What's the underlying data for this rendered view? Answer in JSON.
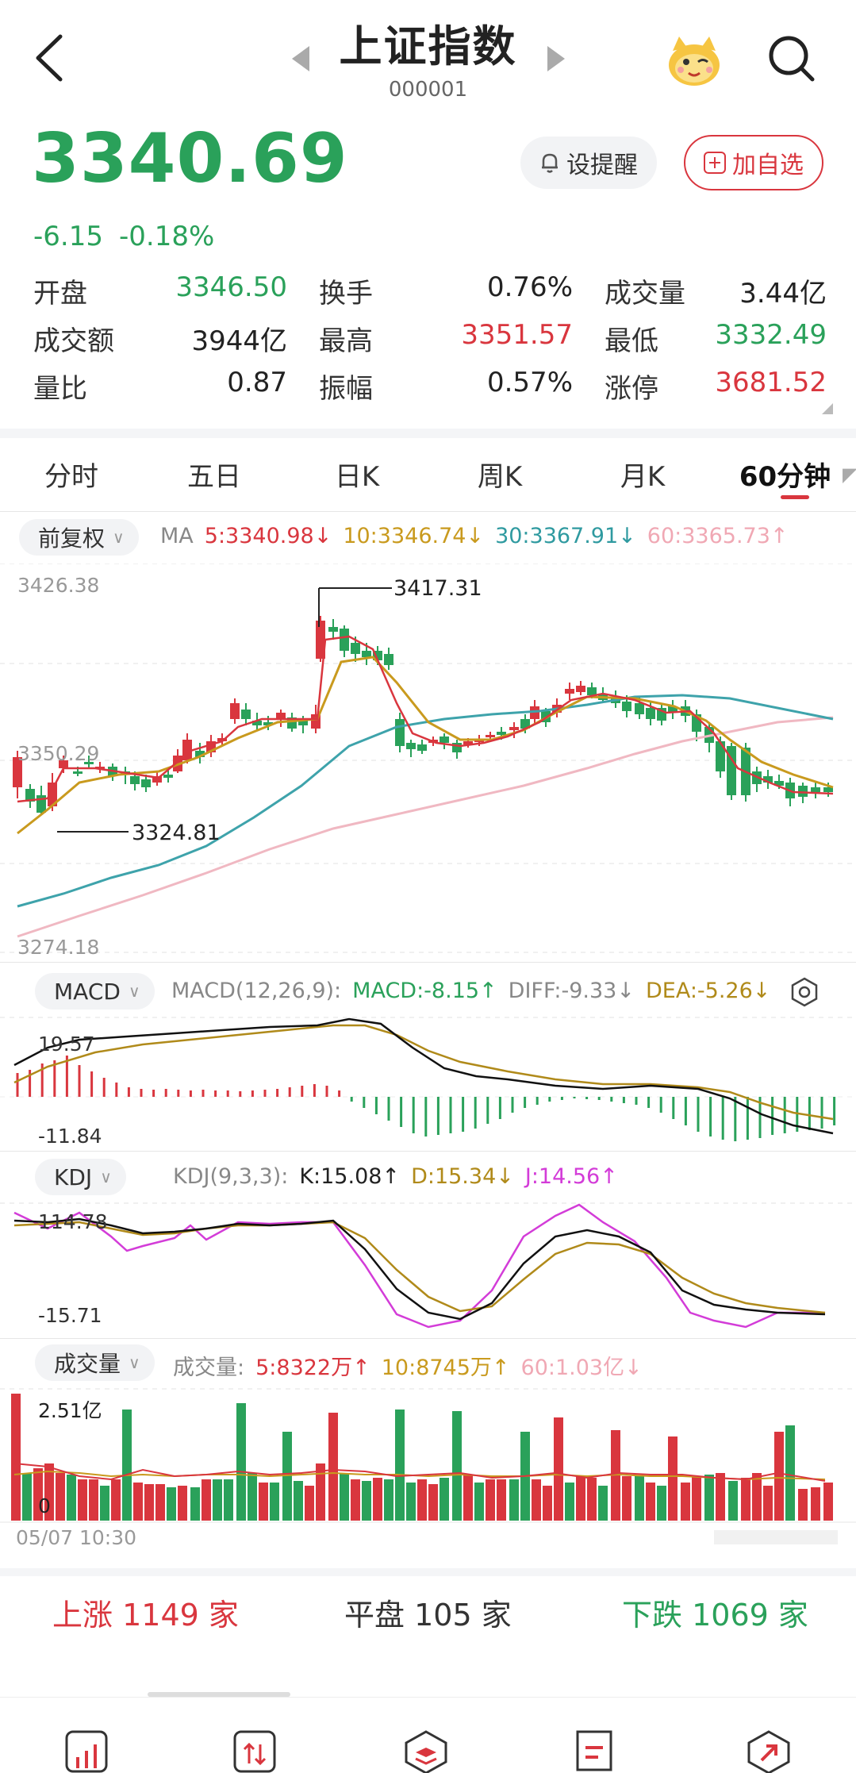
{
  "header": {
    "title": "上证指数",
    "code": "000001"
  },
  "quote": {
    "price": "3340.69",
    "change": "-6.15",
    "change_pct": "-0.18%",
    "remind_label": "设提醒",
    "watch_label": "加自选"
  },
  "stats": [
    [
      {
        "label": "开盘",
        "value": "3346.50",
        "color": "green"
      },
      {
        "label": "换手",
        "value": "0.76%",
        "color": "black"
      },
      {
        "label": "成交量",
        "value": "3.44亿",
        "color": "black"
      }
    ],
    [
      {
        "label": "成交额",
        "value": "3944亿",
        "color": "black"
      },
      {
        "label": "最高",
        "value": "3351.57",
        "color": "red"
      },
      {
        "label": "最低",
        "value": "3332.49",
        "color": "green"
      }
    ],
    [
      {
        "label": "量比",
        "value": "0.87",
        "color": "black"
      },
      {
        "label": "振幅",
        "value": "0.57%",
        "color": "black"
      },
      {
        "label": "涨停",
        "value": "3681.52",
        "color": "red"
      }
    ]
  ],
  "tabs": [
    "分时",
    "五日",
    "日K",
    "周K",
    "月K",
    "60分钟"
  ],
  "active_tab": "60分钟",
  "ma_bar": {
    "pill": "前复权",
    "label": "MA",
    "ma5": "5:3340.98↓",
    "ma10": "10:3346.74↓",
    "ma30": "30:3367.91↓",
    "ma60": "60:3365.73↑"
  },
  "main_chart": {
    "y_top": "3426.38",
    "y_mid": "3350.29",
    "y_bottom": "3274.18",
    "annot_high": "3417.31",
    "annot_low": "3324.81"
  },
  "macd_bar": {
    "pill": "MACD",
    "params": "MACD(12,26,9):",
    "macd": "MACD:-8.15↑",
    "diff": "DIFF:-9.33↓",
    "dea": "DEA:-5.26↓",
    "y_top": "19.57",
    "y_bottom": "-11.84"
  },
  "kdj_bar": {
    "pill": "KDJ",
    "params": "KDJ(9,3,3):",
    "k": "K:15.08↑",
    "d": "D:15.34↓",
    "j": "J:14.56↑",
    "y_top": "114.78",
    "y_bottom": "-15.71"
  },
  "vol_bar": {
    "pill": "成交量",
    "label": "成交量:",
    "v5": "5:8322万↑",
    "v10": "10:8745万↑",
    "v60": "60:1.03亿↓",
    "y_top": "2.51亿",
    "y_zero": "0",
    "time_label": "05/07 10:30"
  },
  "breadth": {
    "up_label": "上涨",
    "up_count": "1149",
    "up_unit": "家",
    "flat_label": "平盘",
    "flat_count": "105",
    "flat_unit": "家",
    "down_label": "下跌",
    "down_count": "1069",
    "down_unit": "家"
  },
  "colors": {
    "up": "#d9363e",
    "down": "#2aa15a",
    "ma5": "#d9363e",
    "ma10": "#c99a1e",
    "ma30": "#2f9aa0",
    "ma60": "#f0a8b4"
  },
  "icons": [
    "back-icon",
    "prev-arrow-icon",
    "next-arrow-icon",
    "mascot-icon",
    "search-icon",
    "bell-icon",
    "plus-icon",
    "gear-icon"
  ]
}
